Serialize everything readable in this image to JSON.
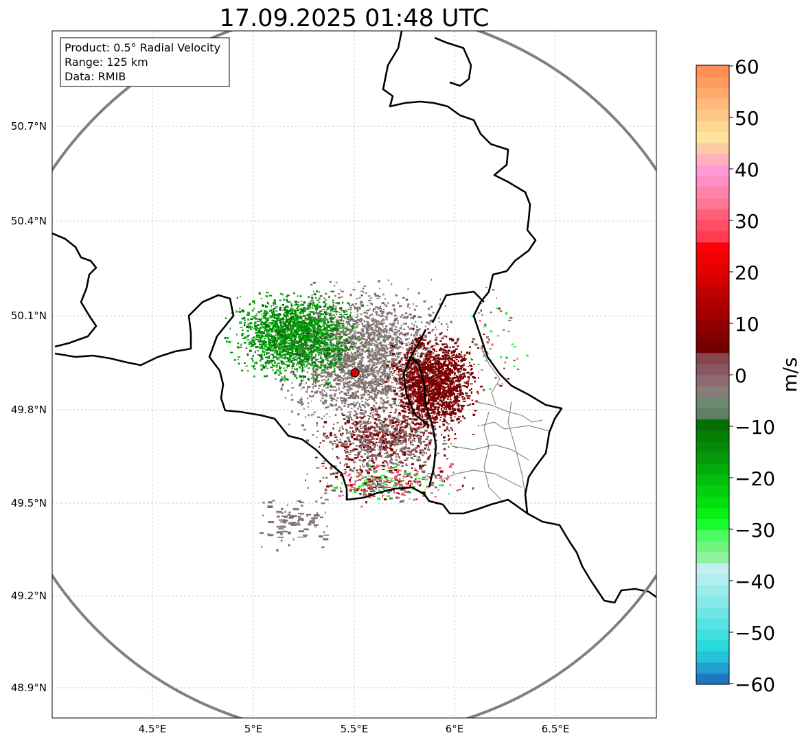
{
  "title": "17.09.2025 01:48 UTC",
  "info_box": {
    "product": "Product: 0.5° Radial Velocity",
    "range": "Range: 125 km",
    "data": "Data: RMIB"
  },
  "map": {
    "x_ticks": [
      "4.5°E",
      "5°E",
      "5.5°E",
      "6°E",
      "6.5°E"
    ],
    "y_ticks": [
      "50.7°N",
      "50.4°N",
      "50.1°N",
      "49.8°N",
      "49.5°N",
      "49.2°N",
      "48.9°N"
    ],
    "radar_site": {
      "lon": 5.505,
      "lat": 49.914
    }
  },
  "colorbar": {
    "label": "m/s",
    "min": -60,
    "max": 60,
    "ticks": [
      "60",
      "50",
      "40",
      "30",
      "20",
      "10",
      "0",
      "−10",
      "−20",
      "−30",
      "−40",
      "−50",
      "−60"
    ],
    "colors_bottom_to_top": [
      "#1f77c4",
      "#229fd0",
      "#25c2d9",
      "#2ad9db",
      "#3ee0e0",
      "#55e3e3",
      "#6ee6e6",
      "#86e8e8",
      "#9cebeb",
      "#b2eeee",
      "#c2f0f0",
      "#8ff09e",
      "#6ef580",
      "#4dfb62",
      "#18fb2e",
      "#06f011",
      "#03df0c",
      "#04cf0c",
      "#03be0b",
      "#02ab0a",
      "#059a09",
      "#048a08",
      "#057e06",
      "#066f04",
      "#5e8062",
      "#6d8871",
      "#887c79",
      "#8e6a73",
      "#8a5662",
      "#86464f",
      "#720000",
      "#800000",
      "#900000",
      "#a00000",
      "#b00000",
      "#c00000",
      "#d20000",
      "#e20000",
      "#f00000",
      "#fc0008",
      "#ff3b4f",
      "#ff4d64",
      "#ff5f77",
      "#ff7692",
      "#ff82a8",
      "#ff8ec4",
      "#ff9ad2",
      "#ffb0bb",
      "#ffcba5",
      "#ffe3a0",
      "#ffd890",
      "#ffc88a",
      "#ffba7c",
      "#ffab6e",
      "#ff9c5e",
      "#ff8f52"
    ]
  },
  "colors": {
    "frame": "#000000",
    "range_ring": "#808080",
    "border": "#000000",
    "province": "#888888",
    "grid": "#c0c0c0",
    "radar_marker": "#e00000"
  }
}
